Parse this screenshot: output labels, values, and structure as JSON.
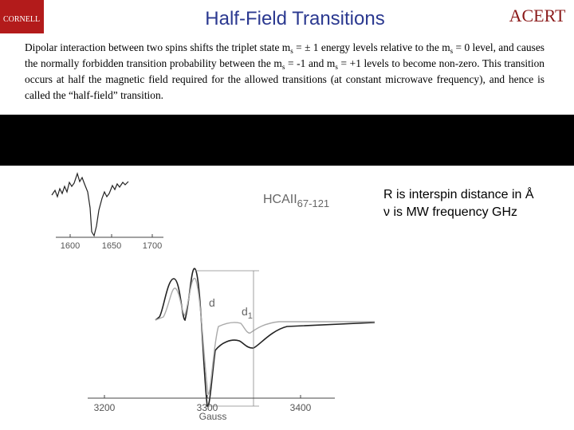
{
  "header": {
    "logo_left": "CORNELL",
    "title": "Half-Field Transitions",
    "logo_right": "ACERT"
  },
  "paragraph": [
    "Dipolar interaction between two spins shifts the triplet state m",
    "s",
    " = ± 1 energy levels relative to the m",
    "s",
    " = 0 level, and causes the normally forbidden transition probability between the m",
    "s",
    " = -1 and m",
    "s",
    " = +1 levels to become non-zero.  This transition occurs at half the magnetic field required for the allowed transitions (at constant microwave frequency), and hence is called the “half-field” transition."
  ],
  "figure": {
    "label": "HCAII",
    "label_sub": "67-121",
    "inset_ticks": [
      "1600",
      "1650",
      "1700"
    ],
    "main_ticks": [
      "3200",
      "3300",
      "3400"
    ],
    "x_label": "Gauss",
    "annotation_d": "d",
    "annotation_d1": "d",
    "annotation_d1_sub": "1"
  },
  "notes": [
    "R is interspin distance in Å",
    "ν is MW frequency GHz"
  ]
}
